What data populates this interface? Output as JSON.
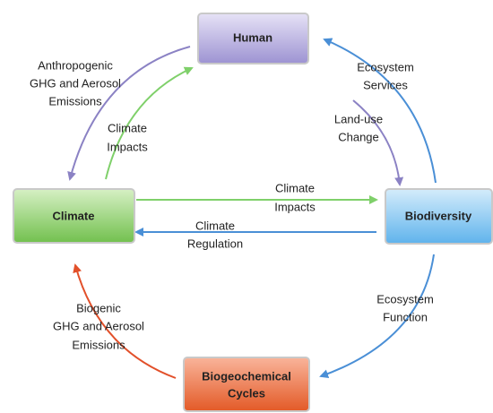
{
  "nodes": [
    {
      "label": [
        "Human"
      ]
    },
    {
      "label": [
        "Climate"
      ]
    },
    {
      "label": [
        "Biodiversity"
      ]
    },
    {
      "label": [
        "Biogeochemical",
        "Cycles"
      ]
    }
  ],
  "edges": [
    {
      "label": [
        "Anthropogenic",
        "GHG and Aerosol",
        "Emissions"
      ]
    },
    {
      "label": [
        "Climate",
        "Impacts"
      ]
    },
    {
      "label": [
        "Ecosystem",
        "Services"
      ]
    },
    {
      "label": [
        "Land-use",
        "Change"
      ]
    },
    {
      "label": [
        "Climate",
        "Impacts"
      ]
    },
    {
      "label": [
        "Climate",
        "Regulation"
      ]
    },
    {
      "label": [
        "Ecosystem",
        "Function"
      ]
    },
    {
      "label": [
        "Biogenic",
        "GHG and Aerosol",
        "Emissions"
      ]
    }
  ]
}
